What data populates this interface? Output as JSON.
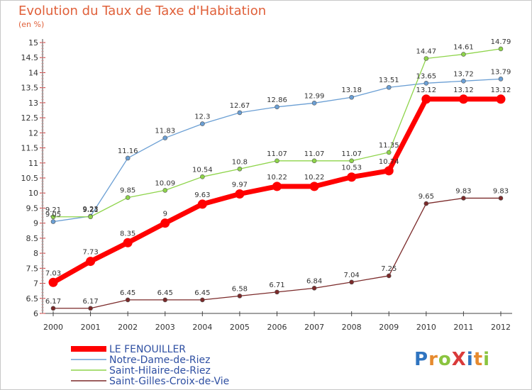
{
  "title": "Evolution du Taux de Taxe d'Habitation",
  "unit": "(en %)",
  "logo": {
    "text": "ProXiti",
    "letters": [
      {
        "ch": "P",
        "color": "#2f74c0"
      },
      {
        "ch": "r",
        "color": "#e68a2e"
      },
      {
        "ch": "o",
        "color": "#8ac43f"
      },
      {
        "ch": "X",
        "color": "#d93a3a"
      },
      {
        "ch": "i",
        "color": "#2f74c0"
      },
      {
        "ch": "t",
        "color": "#e68a2e"
      },
      {
        "ch": "i",
        "color": "#8ac43f"
      }
    ]
  },
  "chart_data": {
    "type": "line",
    "x": [
      "2000",
      "2001",
      "2002",
      "2003",
      "2004",
      "2005",
      "2006",
      "2007",
      "2008",
      "2009",
      "2010",
      "2011",
      "2012"
    ],
    "ylim": [
      6,
      15
    ],
    "yticks": [
      "6",
      "6.5",
      "7",
      "7.5",
      "8",
      "8.5",
      "9",
      "9.5",
      "10",
      "10.5",
      "11",
      "11.5",
      "12",
      "12.5",
      "13",
      "13.5",
      "14",
      "14.5",
      "15"
    ],
    "grid": false,
    "legend": "bottom-left",
    "series": [
      {
        "name": "LE FENOUILLER",
        "color": "#ff0000",
        "values": [
          7.03,
          7.73,
          8.35,
          9,
          9.63,
          9.97,
          10.22,
          10.22,
          10.53,
          10.74,
          13.12,
          13.12,
          13.12
        ],
        "labels": [
          "7.03",
          "7.73",
          "8.35",
          "9",
          "9.63",
          "9.97",
          "10.22",
          "10.22",
          "10.53",
          "10.74",
          "13.12",
          "13.12",
          "13.12"
        ]
      },
      {
        "name": "Notre-Dame-de-Riez",
        "color": "#6b9fd4",
        "values": [
          9.05,
          9.23,
          11.16,
          11.83,
          12.3,
          12.67,
          12.86,
          12.99,
          13.18,
          13.51,
          13.65,
          13.72,
          13.79
        ],
        "labels": [
          "9.05",
          "9.23",
          "11.16",
          "11.83",
          "12.3",
          "12.67",
          "12.86",
          "12.99",
          "13.18",
          "13.51",
          "13.65",
          "13.72",
          "13.79"
        ]
      },
      {
        "name": "Saint-Hilaire-de-Riez",
        "color": "#8ed44a",
        "values": [
          9.21,
          9.21,
          9.85,
          10.09,
          10.54,
          10.8,
          11.07,
          11.07,
          11.07,
          11.35,
          14.47,
          14.61,
          14.79
        ],
        "labels": [
          "9.21",
          "9.21",
          "9.85",
          "10.09",
          "10.54",
          "10.8",
          "11.07",
          "11.07",
          "11.07",
          "11.35",
          "14.47",
          "14.61",
          "14.79"
        ]
      },
      {
        "name": "Saint-Gilles-Croix-de-Vie",
        "color": "#7b2a2a",
        "values": [
          6.17,
          6.17,
          6.45,
          6.45,
          6.45,
          6.58,
          6.71,
          6.84,
          7.04,
          7.25,
          9.65,
          9.83,
          9.83
        ],
        "labels": [
          "6.17",
          "6.17",
          "6.45",
          "6.45",
          "6.45",
          "6.58",
          "6.71",
          "6.84",
          "7.04",
          "7.25",
          "9.65",
          "9.83",
          "9.83"
        ]
      }
    ]
  }
}
